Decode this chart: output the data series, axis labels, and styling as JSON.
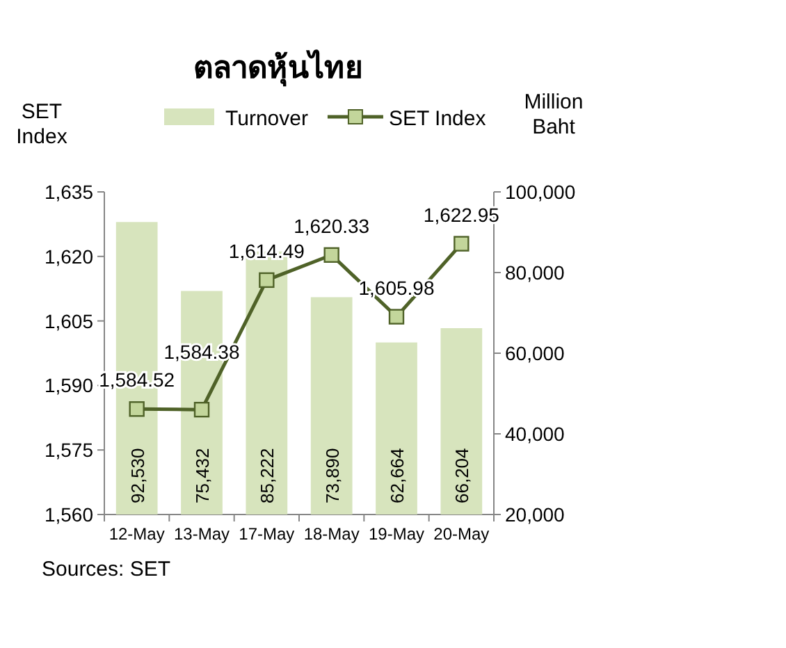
{
  "chart_data": {
    "type": "bar",
    "title": "ตลาดหุ้นไทย",
    "ylabel": "SET Index",
    "y2label": "Million Baht",
    "categories": [
      "12-May",
      "13-May",
      "17-May",
      "18-May",
      "19-May",
      "20-May"
    ],
    "series": [
      {
        "name": "Turnover",
        "axis": "y2",
        "color": "#d7e4bd",
        "values": [
          92530,
          75432,
          85222,
          73890,
          62664,
          66204
        ],
        "value_labels": [
          "92,530",
          "75,432",
          "85,222",
          "73,890",
          "62,664",
          "66,204"
        ]
      },
      {
        "name": "SET Index",
        "type": "line",
        "axis": "y",
        "color": "#4f6228",
        "marker": "square",
        "values": [
          1584.52,
          1584.38,
          1614.49,
          1620.33,
          1605.98,
          1622.95
        ],
        "value_labels": [
          "1,584.52",
          "1,584.38",
          "1,614.49",
          "1,620.33",
          "1,605.98",
          "1,622.95"
        ]
      }
    ],
    "ylim": [
      1560,
      1635
    ],
    "yticks": [
      {
        "value": 1560,
        "label": "1,560"
      },
      {
        "value": 1575,
        "label": "1,575"
      },
      {
        "value": 1590,
        "label": "1,590"
      },
      {
        "value": 1605,
        "label": "1,605"
      },
      {
        "value": 1620,
        "label": "1,620"
      },
      {
        "value": 1635,
        "label": "1,635"
      }
    ],
    "y2lim": [
      20000,
      100000
    ],
    "y2ticks": [
      {
        "value": 20000,
        "label": "20,000"
      },
      {
        "value": 40000,
        "label": "40,000"
      },
      {
        "value": 60000,
        "label": "60,000"
      },
      {
        "value": 80000,
        "label": "80,000"
      },
      {
        "value": 100000,
        "label": "100,000"
      }
    ],
    "legend": "top",
    "grid": false,
    "annotations": [
      "Sources: SET"
    ]
  }
}
